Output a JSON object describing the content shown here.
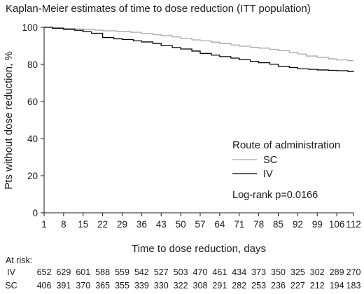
{
  "chart_data": {
    "type": "line",
    "title": "Kaplan-Meier estimates of time to dose reduction (ITT population)",
    "xlabel": "Time to dose reduction, days",
    "ylabel": "Pts without dose reduction, %",
    "xlim": [
      1,
      112
    ],
    "ylim": [
      0,
      100
    ],
    "x_ticks": [
      "1",
      "8",
      "15",
      "22",
      "29",
      "36",
      "43",
      "50",
      "57",
      "64",
      "71",
      "78",
      "85",
      "92",
      "99",
      "106",
      "112"
    ],
    "y_ticks": [
      "0",
      "20",
      "40",
      "60",
      "80",
      "100"
    ],
    "grid": false,
    "legend": {
      "title": "Route of administration",
      "position": "center-right",
      "entries": [
        {
          "label": "SC",
          "color": "#a8a8a8"
        },
        {
          "label": "IV",
          "color": "#000000"
        }
      ]
    },
    "annotation": "Log-rank p=0.0166",
    "series": [
      {
        "name": "SC",
        "color": "#a8a8a8",
        "x": [
          1,
          4,
          8,
          12,
          15,
          19,
          22,
          27,
          32,
          36,
          40,
          43,
          47,
          50,
          54,
          57,
          61,
          64,
          68,
          71,
          75,
          78,
          82,
          85,
          89,
          92,
          95,
          99,
          103,
          106,
          110,
          112
        ],
        "y": [
          100,
          99.7,
          99.4,
          99.1,
          98.8,
          98.5,
          98.1,
          97.8,
          97.3,
          96.7,
          96.0,
          95.5,
          94.8,
          94.0,
          93.2,
          92.7,
          92.0,
          91.2,
          90.5,
          89.8,
          89.2,
          88.8,
          88.1,
          87.4,
          86.5,
          85.6,
          84.5,
          83.8,
          83.0,
          82.4,
          82.0,
          82.0
        ]
      },
      {
        "name": "IV",
        "color": "#000000",
        "x": [
          1,
          4,
          8,
          12,
          15,
          18,
          22,
          26,
          29,
          33,
          36,
          40,
          43,
          47,
          50,
          54,
          57,
          61,
          64,
          68,
          71,
          75,
          78,
          82,
          85,
          89,
          92,
          96,
          99,
          103,
          106,
          110,
          112
        ],
        "y": [
          100,
          99.5,
          98.9,
          98.4,
          97.6,
          96.8,
          94.5,
          93.8,
          93.4,
          92.7,
          92.1,
          91.3,
          90.1,
          89.1,
          88.3,
          87.2,
          85.9,
          85.0,
          84.2,
          83.4,
          82.5,
          81.6,
          80.9,
          80.1,
          79.0,
          78.3,
          77.6,
          77.3,
          77.0,
          76.8,
          76.6,
          76.2,
          76.0
        ]
      }
    ],
    "at_risk": {
      "label": "At risk:",
      "rows": [
        {
          "name": "IV",
          "values": [
            "652",
            "629",
            "601",
            "588",
            "559",
            "542",
            "527",
            "503",
            "470",
            "461",
            "434",
            "373",
            "350",
            "325",
            "302",
            "289",
            "270"
          ]
        },
        {
          "name": "SC",
          "values": [
            "406",
            "391",
            "370",
            "365",
            "355",
            "339",
            "330",
            "322",
            "308",
            "291",
            "282",
            "253",
            "236",
            "227",
            "212",
            "194",
            "183"
          ]
        }
      ]
    }
  }
}
